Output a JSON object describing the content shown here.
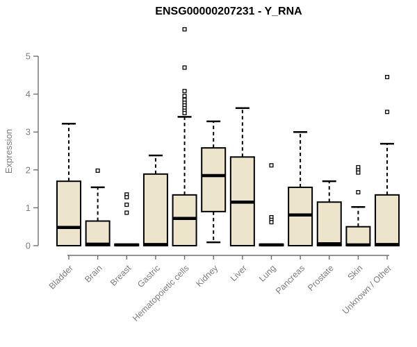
{
  "window": {
    "background": "#ffffff"
  },
  "chart_data": {
    "type": "boxplot",
    "title": "ENSG00000207231 - Y_RNA",
    "ylabel": "Expression",
    "xlabel": "",
    "ylim": [
      0,
      5
    ],
    "yticks": [
      0,
      1,
      2,
      3,
      4,
      5
    ],
    "grid": false,
    "legend": false,
    "categories": [
      "Bladder",
      "Brain",
      "Breast",
      "Gastric",
      "Hematopoietic cells",
      "Kidney",
      "Liver",
      "Lung",
      "Pancreas",
      "Prostate",
      "Skin",
      "Unknown / Other"
    ],
    "series": [
      {
        "label": "Bladder",
        "whisker_low": 0,
        "q1": 0,
        "median": 0.48,
        "q3": 1.7,
        "whisker_high": 3.22,
        "outliers": []
      },
      {
        "label": "Brain",
        "whisker_low": 0,
        "q1": 0,
        "median": 0.04,
        "q3": 0.65,
        "whisker_high": 1.54,
        "outliers": [
          1.98
        ]
      },
      {
        "label": "Breast",
        "whisker_low": 0,
        "q1": 0,
        "median": 0.02,
        "q3": 0.04,
        "whisker_high": 0.04,
        "outliers": [
          1.35,
          1.28,
          1.08,
          0.87
        ]
      },
      {
        "label": "Gastric",
        "whisker_low": 0,
        "q1": 0,
        "median": 0.03,
        "q3": 1.89,
        "whisker_high": 2.38,
        "outliers": []
      },
      {
        "label": "Hematopoietic cells",
        "whisker_low": 0,
        "q1": 0,
        "median": 0.72,
        "q3": 1.34,
        "whisker_high": 3.4,
        "outliers": [
          5.71,
          4.7,
          4.08,
          3.95,
          3.85,
          3.77,
          3.7,
          3.63,
          3.56,
          3.5
        ]
      },
      {
        "label": "Kidney",
        "whisker_low": 0.09,
        "q1": 0.9,
        "median": 1.85,
        "q3": 2.58,
        "whisker_high": 3.28,
        "outliers": []
      },
      {
        "label": "Liver",
        "whisker_low": 0,
        "q1": 0,
        "median": 1.15,
        "q3": 2.34,
        "whisker_high": 3.63,
        "outliers": []
      },
      {
        "label": "Lung",
        "whisker_low": 0,
        "q1": 0,
        "median": 0.02,
        "q3": 0.04,
        "whisker_high": 0.04,
        "outliers": [
          2.12,
          0.75,
          0.68,
          0.62
        ]
      },
      {
        "label": "Pancreas",
        "whisker_low": 0,
        "q1": 0,
        "median": 0.81,
        "q3": 1.54,
        "whisker_high": 3.0,
        "outliers": []
      },
      {
        "label": "Prostate",
        "whisker_low": 0,
        "q1": 0,
        "median": 0.05,
        "q3": 1.15,
        "whisker_high": 1.7,
        "outliers": []
      },
      {
        "label": "Skin",
        "whisker_low": 0,
        "q1": 0,
        "median": 0.02,
        "q3": 0.5,
        "whisker_high": 1.02,
        "outliers": [
          2.07,
          1.99,
          1.93,
          1.41
        ]
      },
      {
        "label": "Unknown / Other",
        "whisker_low": 0,
        "q1": 0,
        "median": 0.03,
        "q3": 1.34,
        "whisker_high": 2.69,
        "outliers": [
          4.45,
          3.53
        ]
      }
    ],
    "colors": {
      "box_fill": "#ece5cb",
      "box_stroke": "#000000",
      "median": "#000000",
      "whisker": "#000000",
      "outlier_fill": "#ffffff",
      "outlier_stroke": "#000000",
      "axis": "#6e6e6e",
      "tick_text": "#7d7d7d",
      "title_text": "#000000"
    }
  }
}
